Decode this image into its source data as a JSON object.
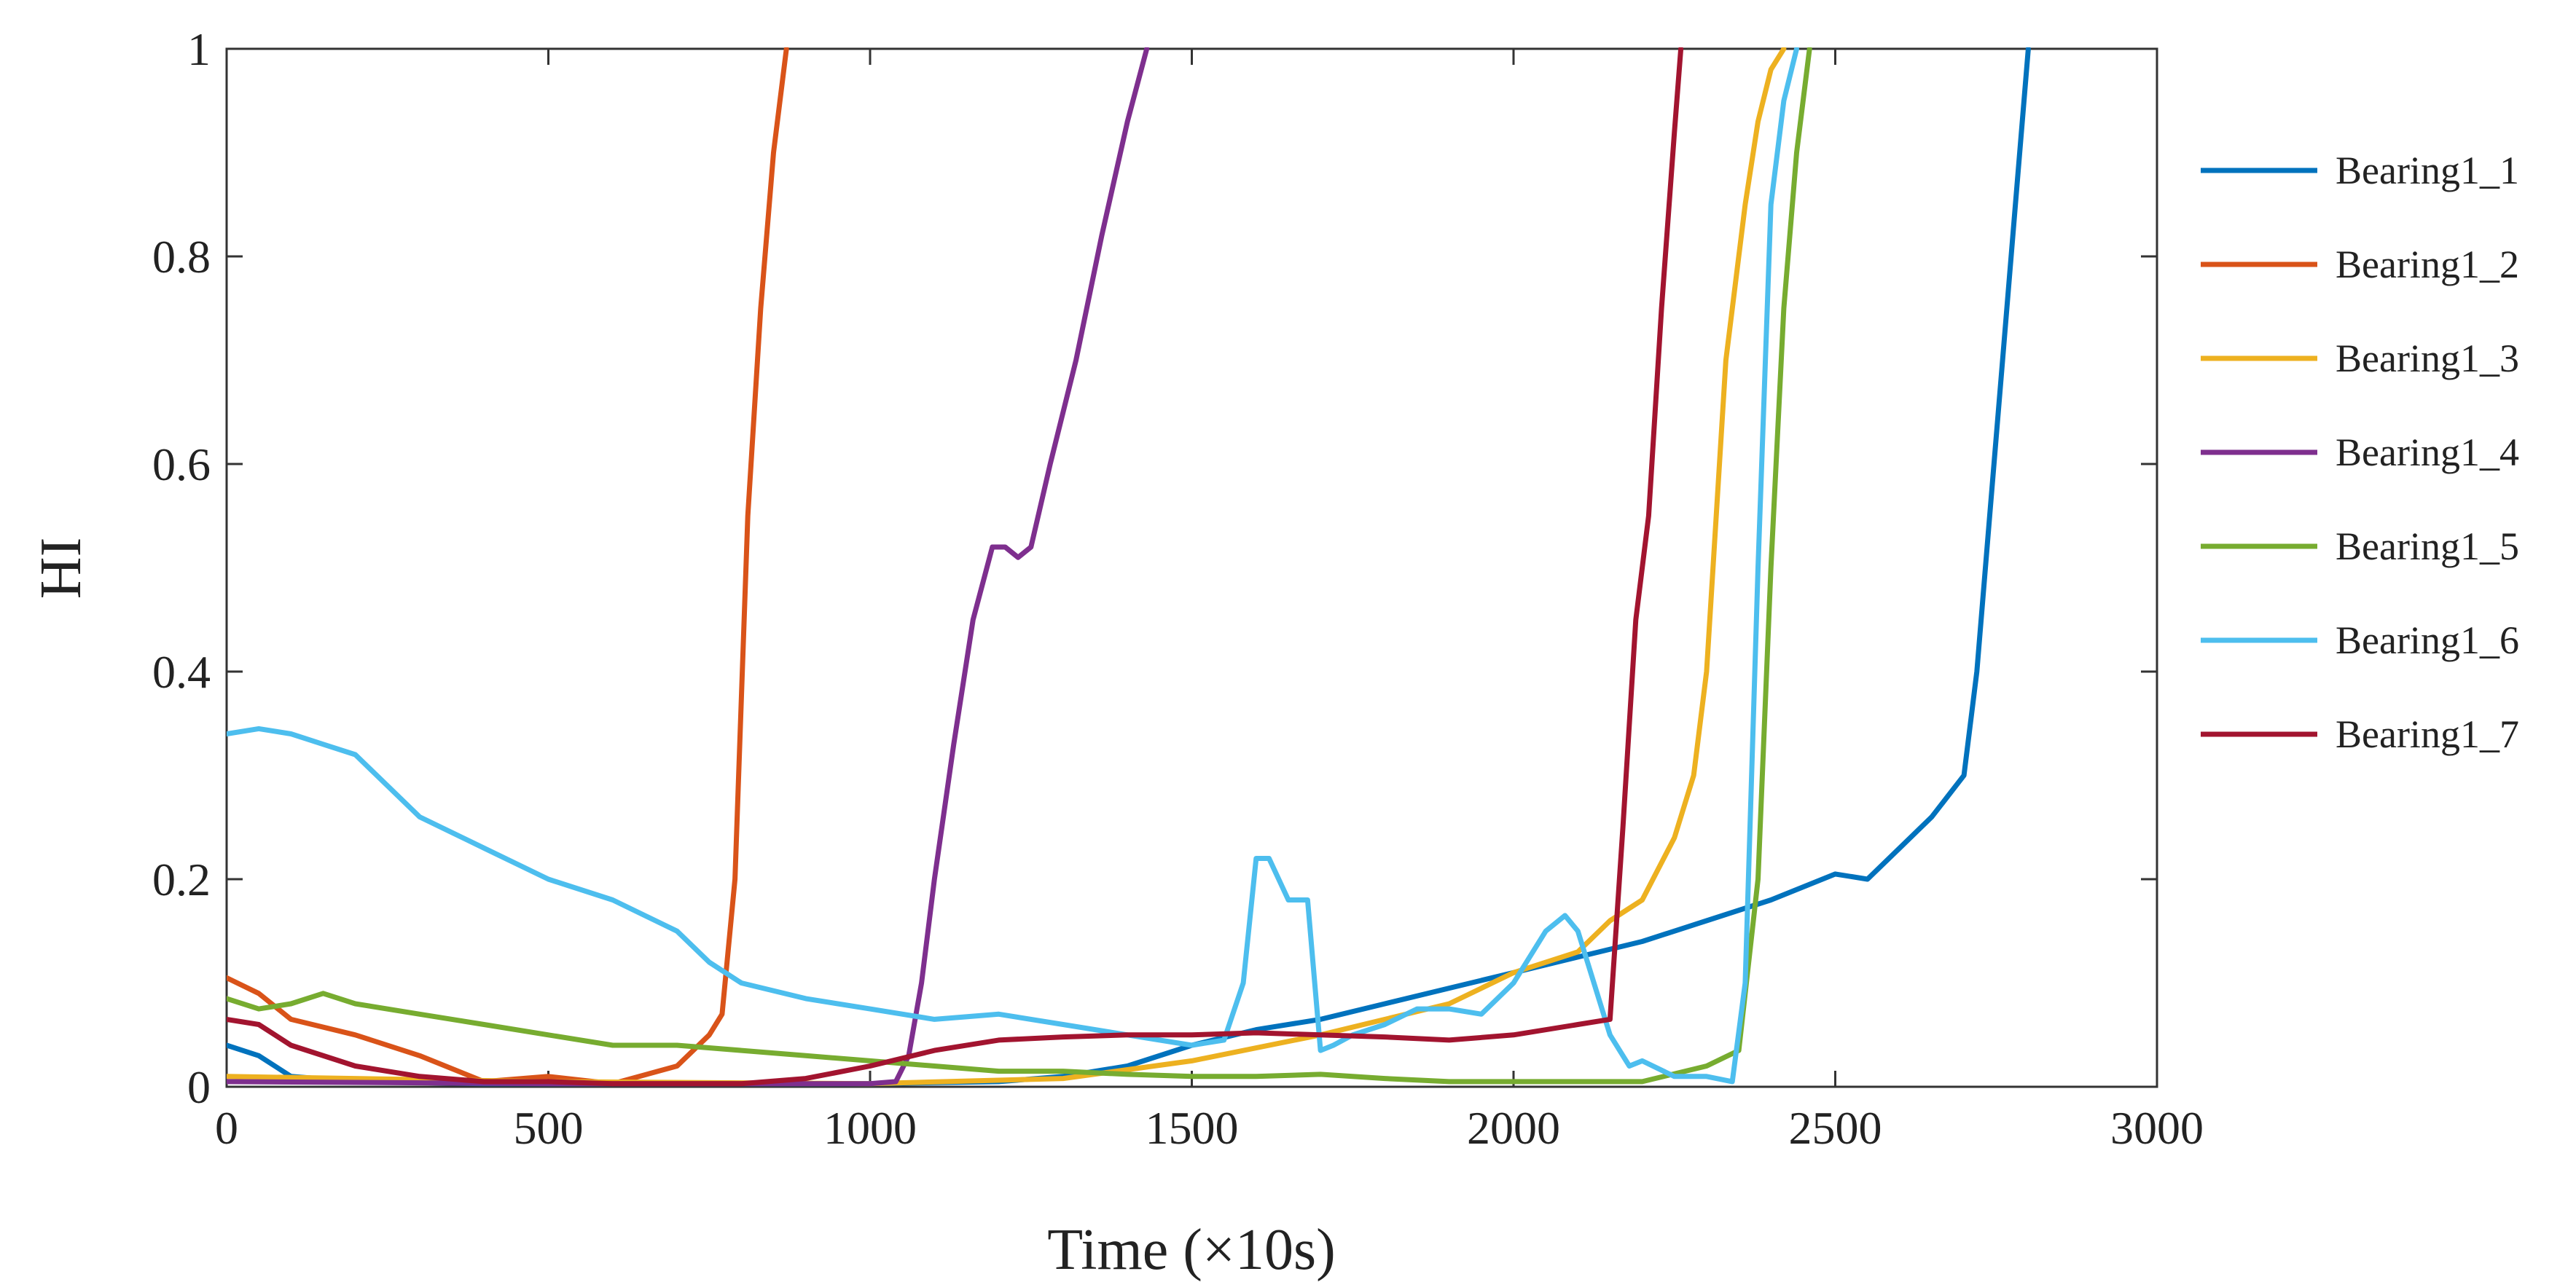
{
  "chart_data": {
    "type": "line",
    "title": "",
    "xlabel": "Time (×10s)",
    "ylabel": "HI",
    "xlim": [
      0,
      3000
    ],
    "ylim": [
      0,
      1
    ],
    "xticks": [
      0,
      500,
      1000,
      1500,
      2000,
      2500,
      3000
    ],
    "yticks": [
      0,
      0.2,
      0.4,
      0.6,
      0.8,
      1
    ],
    "xtick_labels": [
      "0",
      "500",
      "1000",
      "1500",
      "2000",
      "2500",
      "3000"
    ],
    "ytick_labels": [
      "0",
      "0.2",
      "0.4",
      "0.6",
      "0.8",
      "1"
    ],
    "grid": false,
    "legend_position": "right-outside",
    "series": [
      {
        "name": "Bearing1_1",
        "color": "#0072BD",
        "x": [
          0,
          50,
          100,
          200,
          400,
          800,
          1000,
          1200,
          1300,
          1400,
          1500,
          1600,
          1700,
          1800,
          1900,
          2000,
          2100,
          2200,
          2300,
          2400,
          2500,
          2550,
          2600,
          2650,
          2700,
          2720,
          2740,
          2760,
          2780,
          2800
        ],
        "y": [
          0.04,
          0.03,
          0.01,
          0.005,
          0.003,
          0.003,
          0.003,
          0.005,
          0.01,
          0.02,
          0.04,
          0.055,
          0.065,
          0.08,
          0.095,
          0.11,
          0.125,
          0.14,
          0.16,
          0.18,
          0.205,
          0.2,
          0.23,
          0.26,
          0.3,
          0.4,
          0.55,
          0.7,
          0.85,
          1.0
        ]
      },
      {
        "name": "Bearing1_2",
        "color": "#D95319",
        "x": [
          0,
          50,
          100,
          200,
          300,
          400,
          500,
          600,
          700,
          750,
          770,
          790,
          810,
          830,
          850,
          870
        ],
        "y": [
          0.105,
          0.09,
          0.065,
          0.05,
          0.03,
          0.005,
          0.01,
          0.003,
          0.02,
          0.05,
          0.07,
          0.2,
          0.55,
          0.75,
          0.9,
          1.0
        ]
      },
      {
        "name": "Bearing1_3",
        "color": "#EDB120",
        "x": [
          0,
          500,
          1000,
          1300,
          1500,
          1700,
          1900,
          2000,
          2100,
          2150,
          2200,
          2250,
          2280,
          2300,
          2330,
          2360,
          2380,
          2400,
          2420
        ],
        "y": [
          0.01,
          0.005,
          0.003,
          0.008,
          0.025,
          0.05,
          0.08,
          0.11,
          0.13,
          0.16,
          0.18,
          0.24,
          0.3,
          0.4,
          0.7,
          0.85,
          0.93,
          0.98,
          1.0
        ]
      },
      {
        "name": "Bearing1_4",
        "color": "#7E2F8E",
        "x": [
          0,
          500,
          1000,
          1040,
          1060,
          1080,
          1100,
          1130,
          1160,
          1190,
          1210,
          1230,
          1250,
          1280,
          1320,
          1360,
          1400,
          1430
        ],
        "y": [
          0.005,
          0.003,
          0.003,
          0.005,
          0.03,
          0.1,
          0.2,
          0.33,
          0.45,
          0.52,
          0.52,
          0.51,
          0.52,
          0.6,
          0.7,
          0.82,
          0.93,
          1.0
        ]
      },
      {
        "name": "Bearing1_5",
        "color": "#77AC30",
        "x": [
          0,
          50,
          100,
          150,
          200,
          300,
          400,
          500,
          600,
          700,
          800,
          900,
          1000,
          1100,
          1200,
          1300,
          1400,
          1500,
          1600,
          1700,
          1800,
          1900,
          2000,
          2100,
          2200,
          2300,
          2350,
          2380,
          2400,
          2420,
          2440,
          2460
        ],
        "y": [
          0.085,
          0.075,
          0.08,
          0.09,
          0.08,
          0.07,
          0.06,
          0.05,
          0.04,
          0.04,
          0.035,
          0.03,
          0.025,
          0.02,
          0.015,
          0.015,
          0.012,
          0.01,
          0.01,
          0.012,
          0.008,
          0.005,
          0.005,
          0.005,
          0.005,
          0.02,
          0.035,
          0.2,
          0.5,
          0.75,
          0.9,
          1.0
        ]
      },
      {
        "name": "Bearing1_6",
        "color": "#4DBEEE",
        "x": [
          0,
          50,
          100,
          150,
          200,
          300,
          400,
          500,
          600,
          700,
          750,
          800,
          900,
          1000,
          1100,
          1200,
          1300,
          1400,
          1500,
          1550,
          1580,
          1600,
          1620,
          1650,
          1680,
          1700,
          1720,
          1750,
          1800,
          1850,
          1900,
          1950,
          2000,
          2050,
          2080,
          2100,
          2150,
          2180,
          2200,
          2250,
          2300,
          2340,
          2360,
          2380,
          2400,
          2420,
          2440
        ],
        "y": [
          0.34,
          0.345,
          0.34,
          0.33,
          0.32,
          0.26,
          0.23,
          0.2,
          0.18,
          0.15,
          0.12,
          0.1,
          0.085,
          0.075,
          0.065,
          0.07,
          0.06,
          0.05,
          0.04,
          0.045,
          0.1,
          0.22,
          0.22,
          0.18,
          0.18,
          0.035,
          0.04,
          0.05,
          0.06,
          0.075,
          0.075,
          0.07,
          0.1,
          0.15,
          0.165,
          0.15,
          0.05,
          0.02,
          0.025,
          0.01,
          0.01,
          0.005,
          0.1,
          0.5,
          0.85,
          0.95,
          1.0
        ]
      },
      {
        "name": "Bearing1_7",
        "color": "#A2142F",
        "x": [
          0,
          50,
          100,
          200,
          300,
          400,
          500,
          600,
          700,
          800,
          900,
          1000,
          1100,
          1200,
          1300,
          1400,
          1500,
          1600,
          1700,
          1800,
          1900,
          2000,
          2100,
          2150,
          2170,
          2190,
          2210,
          2230,
          2250,
          2260
        ],
        "y": [
          0.065,
          0.06,
          0.04,
          0.02,
          0.01,
          0.005,
          0.005,
          0.003,
          0.003,
          0.003,
          0.008,
          0.02,
          0.035,
          0.045,
          0.048,
          0.05,
          0.05,
          0.052,
          0.05,
          0.048,
          0.045,
          0.05,
          0.06,
          0.065,
          0.25,
          0.45,
          0.55,
          0.75,
          0.92,
          1.0
        ]
      }
    ]
  }
}
